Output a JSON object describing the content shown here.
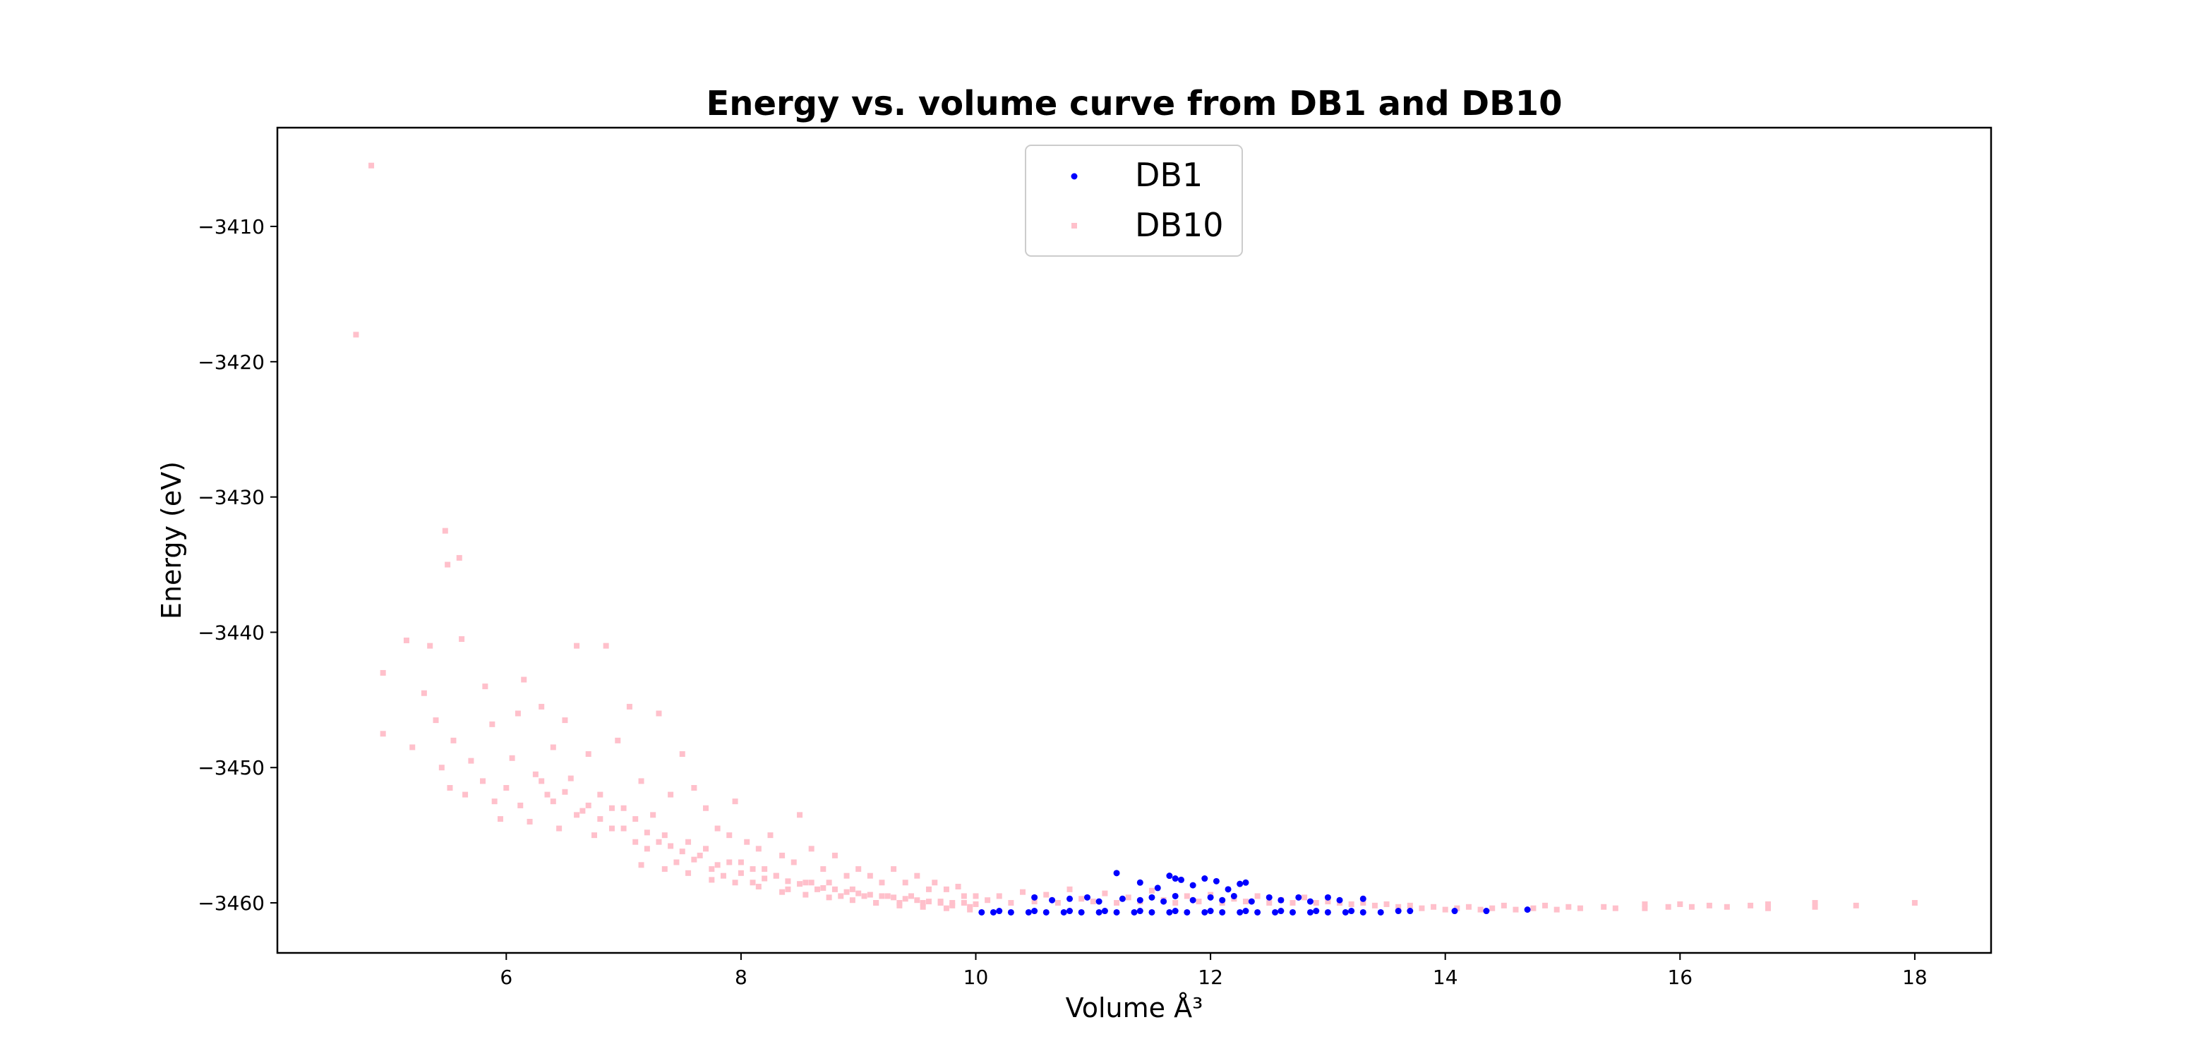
{
  "chart_data": {
    "type": "scatter",
    "title": "Energy vs. volume curve from DB1 and DB10",
    "xlabel": "Volume Å³",
    "ylabel": "Energy (eV)",
    "xlim": [
      4.05,
      18.65
    ],
    "ylim": [
      -3463.7,
      -3402.7
    ],
    "x_ticks": [
      6,
      8,
      10,
      12,
      14,
      16,
      18
    ],
    "y_ticks": [
      -3410,
      -3420,
      -3430,
      -3440,
      -3450,
      -3460
    ],
    "x_tick_labels": [
      "6",
      "8",
      "10",
      "12",
      "14",
      "16",
      "18"
    ],
    "y_tick_labels": [
      "−3410",
      "−3420",
      "−3430",
      "−3440",
      "−3450",
      "−3460"
    ],
    "legend_position": "upper center",
    "grid": false,
    "series": [
      {
        "name": "DB1",
        "color": "#0000ff",
        "marker": "circle",
        "points": [
          [
            10.05,
            -3460.7
          ],
          [
            10.15,
            -3460.7
          ],
          [
            10.3,
            -3460.7
          ],
          [
            10.45,
            -3460.7
          ],
          [
            10.6,
            -3460.7
          ],
          [
            10.75,
            -3460.7
          ],
          [
            10.9,
            -3460.7
          ],
          [
            11.05,
            -3460.7
          ],
          [
            11.2,
            -3460.7
          ],
          [
            11.35,
            -3460.7
          ],
          [
            11.5,
            -3460.7
          ],
          [
            11.65,
            -3460.7
          ],
          [
            11.8,
            -3460.7
          ],
          [
            11.95,
            -3460.7
          ],
          [
            12.1,
            -3460.7
          ],
          [
            12.25,
            -3460.7
          ],
          [
            12.4,
            -3460.7
          ],
          [
            12.55,
            -3460.7
          ],
          [
            12.7,
            -3460.7
          ],
          [
            12.85,
            -3460.7
          ],
          [
            13.0,
            -3460.7
          ],
          [
            13.15,
            -3460.7
          ],
          [
            13.3,
            -3460.7
          ],
          [
            13.45,
            -3460.7
          ],
          [
            10.2,
            -3460.6
          ],
          [
            10.5,
            -3460.6
          ],
          [
            10.8,
            -3460.6
          ],
          [
            11.1,
            -3460.6
          ],
          [
            11.4,
            -3460.6
          ],
          [
            11.7,
            -3460.6
          ],
          [
            12.0,
            -3460.6
          ],
          [
            12.3,
            -3460.6
          ],
          [
            12.6,
            -3460.6
          ],
          [
            12.9,
            -3460.6
          ],
          [
            13.2,
            -3460.6
          ],
          [
            13.6,
            -3460.6
          ],
          [
            13.7,
            -3460.6
          ],
          [
            14.08,
            -3460.6
          ],
          [
            14.35,
            -3460.6
          ],
          [
            14.7,
            -3460.5
          ],
          [
            10.5,
            -3459.6
          ],
          [
            10.65,
            -3459.8
          ],
          [
            10.8,
            -3459.7
          ],
          [
            10.95,
            -3459.6
          ],
          [
            11.05,
            -3459.9
          ],
          [
            11.25,
            -3459.7
          ],
          [
            11.4,
            -3459.8
          ],
          [
            11.5,
            -3459.6
          ],
          [
            11.6,
            -3459.9
          ],
          [
            11.7,
            -3459.5
          ],
          [
            11.85,
            -3459.8
          ],
          [
            12.0,
            -3459.6
          ],
          [
            12.1,
            -3459.8
          ],
          [
            12.2,
            -3459.5
          ],
          [
            12.35,
            -3459.9
          ],
          [
            12.5,
            -3459.6
          ],
          [
            12.6,
            -3459.8
          ],
          [
            12.75,
            -3459.6
          ],
          [
            12.85,
            -3459.9
          ],
          [
            13.0,
            -3459.6
          ],
          [
            13.1,
            -3459.8
          ],
          [
            13.3,
            -3459.7
          ],
          [
            11.2,
            -3457.8
          ],
          [
            11.4,
            -3458.5
          ],
          [
            11.55,
            -3458.9
          ],
          [
            11.65,
            -3458.0
          ],
          [
            11.75,
            -3458.3
          ],
          [
            11.85,
            -3458.7
          ],
          [
            11.95,
            -3458.2
          ],
          [
            12.05,
            -3458.4
          ],
          [
            12.15,
            -3459.0
          ],
          [
            12.25,
            -3458.6
          ],
          [
            12.3,
            -3458.5
          ],
          [
            11.7,
            -3458.2
          ]
        ]
      },
      {
        "name": "DB10",
        "color": "#ffc0cb",
        "marker": "square",
        "points": [
          [
            4.72,
            -3418.0
          ],
          [
            4.85,
            -3405.5
          ],
          [
            4.95,
            -3443.0
          ],
          [
            4.95,
            -3447.5
          ],
          [
            5.15,
            -3440.6
          ],
          [
            5.2,
            -3448.5
          ],
          [
            5.3,
            -3444.5
          ],
          [
            5.35,
            -3441.0
          ],
          [
            5.4,
            -3446.5
          ],
          [
            5.45,
            -3450.0
          ],
          [
            5.48,
            -3432.5
          ],
          [
            5.5,
            -3435.0
          ],
          [
            5.52,
            -3451.5
          ],
          [
            5.55,
            -3448.0
          ],
          [
            5.6,
            -3434.5
          ],
          [
            5.62,
            -3440.5
          ],
          [
            5.65,
            -3452.0
          ],
          [
            5.7,
            -3449.5
          ],
          [
            5.8,
            -3451.0
          ],
          [
            5.82,
            -3444.0
          ],
          [
            5.88,
            -3446.8
          ],
          [
            5.9,
            -3452.5
          ],
          [
            5.95,
            -3453.8
          ],
          [
            6.0,
            -3451.5
          ],
          [
            6.05,
            -3449.3
          ],
          [
            6.1,
            -3446.0
          ],
          [
            6.12,
            -3452.8
          ],
          [
            6.15,
            -3443.5
          ],
          [
            6.2,
            -3454.0
          ],
          [
            6.25,
            -3450.5
          ],
          [
            6.3,
            -3445.5
          ],
          [
            6.35,
            -3452.0
          ],
          [
            6.4,
            -3448.5
          ],
          [
            6.45,
            -3454.5
          ],
          [
            6.5,
            -3446.5
          ],
          [
            6.55,
            -3450.8
          ],
          [
            6.6,
            -3441.0
          ],
          [
            6.65,
            -3453.2
          ],
          [
            6.7,
            -3449.0
          ],
          [
            6.75,
            -3455.0
          ],
          [
            6.8,
            -3452.0
          ],
          [
            6.85,
            -3441.0
          ],
          [
            6.9,
            -3454.5
          ],
          [
            6.95,
            -3448.0
          ],
          [
            7.0,
            -3453.0
          ],
          [
            7.05,
            -3445.5
          ],
          [
            7.1,
            -3455.5
          ],
          [
            7.15,
            -3451.0
          ],
          [
            7.2,
            -3456.0
          ],
          [
            7.25,
            -3453.5
          ],
          [
            7.3,
            -3446.0
          ],
          [
            7.35,
            -3455.0
          ],
          [
            7.4,
            -3452.0
          ],
          [
            7.45,
            -3457.0
          ],
          [
            7.5,
            -3449.0
          ],
          [
            7.55,
            -3455.5
          ],
          [
            7.6,
            -3451.5
          ],
          [
            7.65,
            -3456.5
          ],
          [
            7.7,
            -3453.0
          ],
          [
            7.75,
            -3457.5
          ],
          [
            7.8,
            -3454.5
          ],
          [
            7.85,
            -3458.0
          ],
          [
            7.9,
            -3455.0
          ],
          [
            7.95,
            -3452.5
          ],
          [
            8.0,
            -3457.0
          ],
          [
            8.05,
            -3455.5
          ],
          [
            8.1,
            -3458.5
          ],
          [
            8.15,
            -3456.0
          ],
          [
            8.2,
            -3457.5
          ],
          [
            8.25,
            -3455.0
          ],
          [
            8.3,
            -3458.0
          ],
          [
            8.35,
            -3456.5
          ],
          [
            8.4,
            -3459.0
          ],
          [
            8.45,
            -3457.0
          ],
          [
            8.5,
            -3453.5
          ],
          [
            8.55,
            -3458.5
          ],
          [
            8.6,
            -3456.0
          ],
          [
            8.65,
            -3459.0
          ],
          [
            8.7,
            -3457.5
          ],
          [
            8.75,
            -3458.5
          ],
          [
            8.8,
            -3456.5
          ],
          [
            8.85,
            -3459.5
          ],
          [
            8.9,
            -3458.0
          ],
          [
            8.95,
            -3459.0
          ],
          [
            9.0,
            -3457.5
          ],
          [
            9.05,
            -3459.5
          ],
          [
            9.1,
            -3458.0
          ],
          [
            9.15,
            -3460.0
          ],
          [
            9.2,
            -3458.5
          ],
          [
            9.25,
            -3459.5
          ],
          [
            9.3,
            -3457.5
          ],
          [
            9.35,
            -3460.0
          ],
          [
            9.4,
            -3458.5
          ],
          [
            9.45,
            -3459.5
          ],
          [
            9.5,
            -3458.0
          ],
          [
            9.55,
            -3460.0
          ],
          [
            9.6,
            -3459.0
          ],
          [
            9.65,
            -3458.5
          ],
          [
            9.7,
            -3460.0
          ],
          [
            9.75,
            -3459.0
          ],
          [
            9.8,
            -3460.2
          ],
          [
            9.85,
            -3458.8
          ],
          [
            9.9,
            -3459.5
          ],
          [
            9.95,
            -3460.3
          ],
          [
            10.0,
            -3459.5
          ],
          [
            6.3,
            -3451.0
          ],
          [
            6.4,
            -3452.5
          ],
          [
            6.5,
            -3451.8
          ],
          [
            6.6,
            -3453.5
          ],
          [
            6.7,
            -3452.8
          ],
          [
            6.8,
            -3453.8
          ],
          [
            6.9,
            -3453.0
          ],
          [
            7.0,
            -3454.5
          ],
          [
            7.1,
            -3453.8
          ],
          [
            7.2,
            -3454.8
          ],
          [
            7.3,
            -3455.5
          ],
          [
            7.4,
            -3455.8
          ],
          [
            7.5,
            -3456.2
          ],
          [
            7.6,
            -3456.8
          ],
          [
            7.7,
            -3456.0
          ],
          [
            7.8,
            -3457.2
          ],
          [
            7.9,
            -3457.0
          ],
          [
            8.0,
            -3457.8
          ],
          [
            8.1,
            -3457.5
          ],
          [
            8.2,
            -3458.2
          ],
          [
            8.3,
            -3458.0
          ],
          [
            8.4,
            -3458.4
          ],
          [
            8.5,
            -3458.6
          ],
          [
            8.6,
            -3458.5
          ],
          [
            8.7,
            -3458.9
          ],
          [
            8.8,
            -3459.0
          ],
          [
            8.9,
            -3459.2
          ],
          [
            9.0,
            -3459.3
          ],
          [
            9.1,
            -3459.4
          ],
          [
            9.2,
            -3459.5
          ],
          [
            9.3,
            -3459.6
          ],
          [
            9.4,
            -3459.7
          ],
          [
            9.5,
            -3459.8
          ],
          [
            9.6,
            -3459.9
          ],
          [
            9.7,
            -3459.9
          ],
          [
            9.8,
            -3460.0
          ],
          [
            9.9,
            -3460.0
          ],
          [
            10.0,
            -3460.1
          ],
          [
            7.15,
            -3457.2
          ],
          [
            7.35,
            -3457.5
          ],
          [
            7.55,
            -3457.8
          ],
          [
            7.75,
            -3458.3
          ],
          [
            7.95,
            -3458.5
          ],
          [
            8.15,
            -3458.8
          ],
          [
            8.35,
            -3459.2
          ],
          [
            8.55,
            -3459.4
          ],
          [
            8.75,
            -3459.6
          ],
          [
            8.95,
            -3459.8
          ],
          [
            9.15,
            -3460.0
          ],
          [
            9.35,
            -3460.2
          ],
          [
            9.55,
            -3460.3
          ],
          [
            9.75,
            -3460.4
          ],
          [
            9.95,
            -3460.5
          ],
          [
            10.1,
            -3459.8
          ],
          [
            10.2,
            -3459.5
          ],
          [
            10.3,
            -3460.0
          ],
          [
            10.4,
            -3459.2
          ],
          [
            10.5,
            -3459.9
          ],
          [
            10.6,
            -3459.4
          ],
          [
            10.7,
            -3460.0
          ],
          [
            10.8,
            -3459.0
          ],
          [
            10.9,
            -3459.7
          ],
          [
            11.0,
            -3459.9
          ],
          [
            11.1,
            -3459.3
          ],
          [
            11.2,
            -3460.0
          ],
          [
            11.3,
            -3459.6
          ],
          [
            11.4,
            -3459.9
          ],
          [
            11.5,
            -3459.1
          ],
          [
            11.6,
            -3459.8
          ],
          [
            11.7,
            -3460.0
          ],
          [
            11.8,
            -3459.5
          ],
          [
            11.9,
            -3459.9
          ],
          [
            12.0,
            -3459.4
          ],
          [
            12.1,
            -3460.0
          ],
          [
            12.2,
            -3459.7
          ],
          [
            12.3,
            -3459.9
          ],
          [
            12.4,
            -3459.5
          ],
          [
            12.5,
            -3460.0
          ],
          [
            12.6,
            -3459.8
          ],
          [
            12.7,
            -3460.0
          ],
          [
            12.8,
            -3459.6
          ],
          [
            12.9,
            -3460.0
          ],
          [
            13.0,
            -3459.9
          ],
          [
            13.1,
            -3460.0
          ],
          [
            13.2,
            -3460.1
          ],
          [
            13.3,
            -3460.0
          ],
          [
            13.4,
            -3460.2
          ],
          [
            13.5,
            -3460.1
          ],
          [
            13.6,
            -3460.3
          ],
          [
            13.7,
            -3460.2
          ],
          [
            13.8,
            -3460.4
          ],
          [
            13.9,
            -3460.3
          ],
          [
            14.0,
            -3460.5
          ],
          [
            14.1,
            -3460.4
          ],
          [
            14.2,
            -3460.3
          ],
          [
            14.3,
            -3460.5
          ],
          [
            14.4,
            -3460.4
          ],
          [
            14.5,
            -3460.2
          ],
          [
            14.6,
            -3460.5
          ],
          [
            14.75,
            -3460.4
          ],
          [
            14.85,
            -3460.2
          ],
          [
            14.95,
            -3460.5
          ],
          [
            15.05,
            -3460.3
          ],
          [
            15.15,
            -3460.4
          ],
          [
            15.35,
            -3460.3
          ],
          [
            15.45,
            -3460.4
          ],
          [
            15.7,
            -3460.1
          ],
          [
            15.7,
            -3460.4
          ],
          [
            15.9,
            -3460.3
          ],
          [
            16.0,
            -3460.1
          ],
          [
            16.1,
            -3460.3
          ],
          [
            16.25,
            -3460.2
          ],
          [
            16.4,
            -3460.3
          ],
          [
            16.6,
            -3460.2
          ],
          [
            16.75,
            -3460.1
          ],
          [
            16.75,
            -3460.4
          ],
          [
            17.15,
            -3460.0
          ],
          [
            17.15,
            -3460.3
          ],
          [
            17.5,
            -3460.2
          ],
          [
            18.0,
            -3460.0
          ]
        ]
      }
    ]
  }
}
